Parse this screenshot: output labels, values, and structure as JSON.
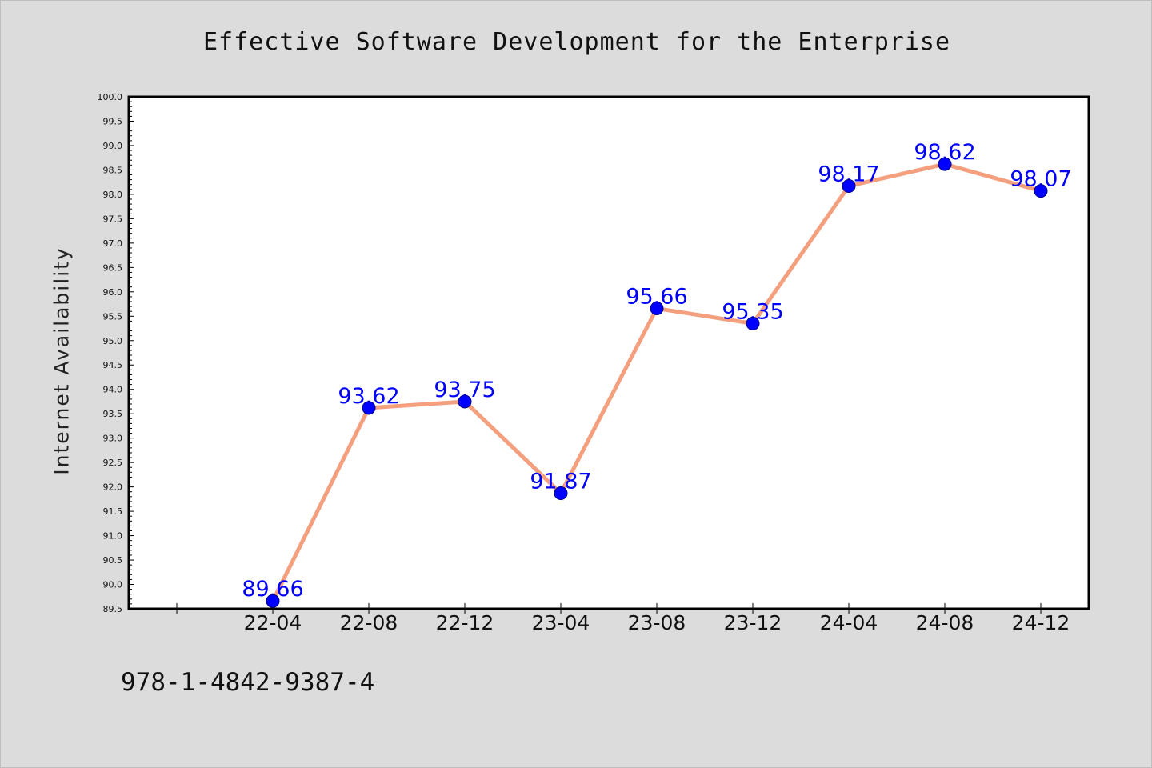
{
  "chart_data": {
    "type": "line",
    "title": "Effective Software Development for the Enterprise",
    "xlabel": "",
    "ylabel": "Internet Availability",
    "categories": [
      "22-04",
      "22-08",
      "22-12",
      "23-04",
      "23-08",
      "23-12",
      "24-04",
      "24-08",
      "24-12"
    ],
    "series": [
      {
        "values": [
          89.66,
          93.62,
          93.75,
          91.87,
          95.66,
          95.35,
          98.17,
          98.62,
          98.07
        ]
      }
    ],
    "data_labels": [
      "89.66",
      "93.62",
      "93.75",
      "91.87",
      "95.66",
      "95.35",
      "98.17",
      "98.62",
      "98.07"
    ],
    "ylim": [
      89.5,
      100.0
    ],
    "yticks": [
      "89.5",
      "90.0",
      "90.5",
      "91.0",
      "91.5",
      "92.0",
      "92.5",
      "93.0",
      "93.5",
      "94.0",
      "94.5",
      "95.0",
      "95.5",
      "96.0",
      "96.5",
      "97.0",
      "97.5",
      "98.0",
      "98.5",
      "99.0",
      "99.5",
      "100.0"
    ],
    "grid": false,
    "colors": {
      "line": "#f4a07f",
      "marker": "#0000ff",
      "data_label": "#0000ff",
      "background": "#dcdcdc",
      "plot_background": "#ffffff"
    }
  },
  "footer": {
    "isbn": "978-1-4842-9387-4"
  }
}
